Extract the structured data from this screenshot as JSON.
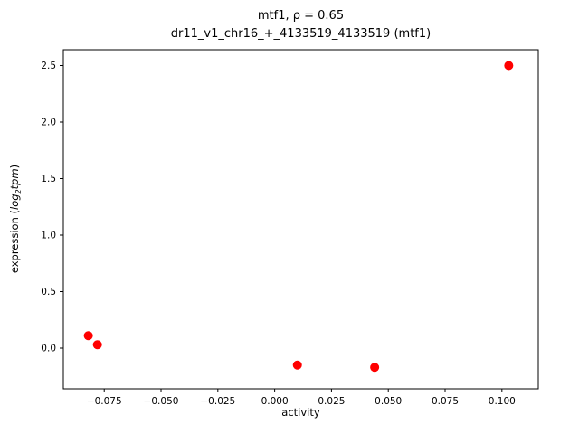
{
  "chart_data": {
    "type": "scatter",
    "title_line1": "mtf1, ρ = 0.65",
    "title_line2": "dr11_v1_chr16_+_4133519_4133519 (mtf1)",
    "xlabel": "activity",
    "ylabel": {
      "prefix": "expression (",
      "italic1": "log",
      "sub": "2",
      "italic2": "tpm",
      "suffix": ")"
    },
    "marker_color": "#ff0000",
    "xlim": [
      -0.093,
      0.116
    ],
    "ylim": [
      -0.36,
      2.64
    ],
    "xticks": {
      "values": [
        -0.075,
        -0.05,
        -0.025,
        0.0,
        0.025,
        0.05,
        0.075,
        0.1
      ],
      "labels": [
        "−0.075",
        "−0.050",
        "−0.025",
        "0.000",
        "0.025",
        "0.050",
        "0.075",
        "0.100"
      ]
    },
    "yticks": {
      "values": [
        0.0,
        0.5,
        1.0,
        1.5,
        2.0,
        2.5
      ],
      "labels": [
        "0.0",
        "0.5",
        "1.0",
        "1.5",
        "2.0",
        "2.5"
      ]
    },
    "points": [
      {
        "x": -0.082,
        "y": 0.11
      },
      {
        "x": -0.078,
        "y": 0.03
      },
      {
        "x": 0.01,
        "y": -0.15
      },
      {
        "x": 0.044,
        "y": -0.17
      },
      {
        "x": 0.103,
        "y": 2.5
      }
    ]
  }
}
